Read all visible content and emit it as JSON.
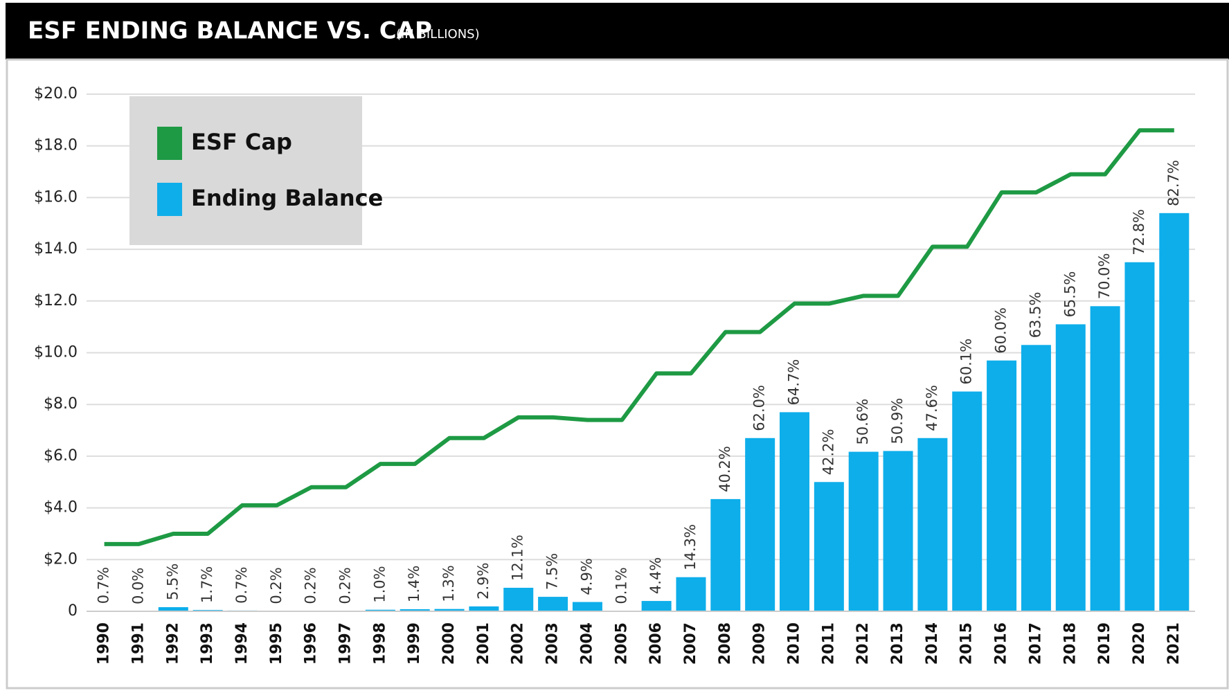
{
  "chart_data": {
    "type": "bar_line",
    "title": "ESF ENDING BALANCE VS. CAP",
    "subtitle": "(IN BILLIONS)",
    "categories": [
      "1990",
      "1991",
      "1992",
      "1993",
      "1994",
      "1995",
      "1996",
      "1997",
      "1998",
      "1999",
      "2000",
      "2001",
      "2002",
      "2003",
      "2004",
      "2005",
      "2006",
      "2007",
      "2008",
      "2009",
      "2010",
      "2011",
      "2012",
      "2013",
      "2014",
      "2015",
      "2016",
      "2017",
      "2018",
      "2019",
      "2020",
      "2021"
    ],
    "series": [
      {
        "name": "ESF Cap",
        "type": "line",
        "color": "#1e9a44",
        "values": [
          2.6,
          2.6,
          3.0,
          3.0,
          4.1,
          4.1,
          4.8,
          4.8,
          5.7,
          5.7,
          6.7,
          6.7,
          7.5,
          7.5,
          7.4,
          7.4,
          9.2,
          9.2,
          10.8,
          10.8,
          11.9,
          11.9,
          12.2,
          12.2,
          14.1,
          14.1,
          16.2,
          16.2,
          16.9,
          16.9,
          18.6,
          18.6
        ]
      },
      {
        "name": "Ending Balance",
        "type": "bar",
        "color": "#0eaeea",
        "values": [
          0.02,
          0.0,
          0.16,
          0.05,
          0.03,
          0.01,
          0.01,
          0.01,
          0.06,
          0.08,
          0.09,
          0.19,
          0.91,
          0.56,
          0.36,
          0.01,
          0.4,
          1.32,
          4.34,
          6.7,
          7.7,
          5.0,
          6.17,
          6.2,
          6.7,
          8.5,
          9.7,
          10.3,
          11.1,
          11.8,
          13.5,
          15.4
        ],
        "ratio_labels": [
          "0.7%",
          "0.0%",
          "5.5%",
          "1.7%",
          "0.7%",
          "0.2%",
          "0.2%",
          "0.2%",
          "1.0%",
          "1.4%",
          "1.3%",
          "2.9%",
          "12.1%",
          "7.5%",
          "4.9%",
          "0.1%",
          "4.4%",
          "14.3%",
          "40.2%",
          "62.0%",
          "64.7%",
          "42.2%",
          "50.6%",
          "50.9%",
          "47.6%",
          "60.1%",
          "60.0%",
          "63.5%",
          "65.5%",
          "70.0%",
          "72.8%",
          "82.7%"
        ]
      }
    ],
    "ylim": [
      0,
      20
    ],
    "yticks": [
      0,
      {
        "value": 2,
        "label": "$2.0"
      },
      {
        "value": 4,
        "label": "$4.0"
      },
      {
        "value": 6,
        "label": "$6.0"
      },
      {
        "value": 8,
        "label": "$8.0"
      },
      {
        "value": 10,
        "label": "$10.0"
      },
      {
        "value": 12,
        "label": "$12.0"
      },
      {
        "value": 14,
        "label": "$14.0"
      },
      {
        "value": 16,
        "label": "$16.0"
      },
      {
        "value": 18,
        "label": "$18.0"
      },
      {
        "value": 20,
        "label": "$20.0"
      }
    ],
    "grid": true,
    "legend": "top-left"
  }
}
